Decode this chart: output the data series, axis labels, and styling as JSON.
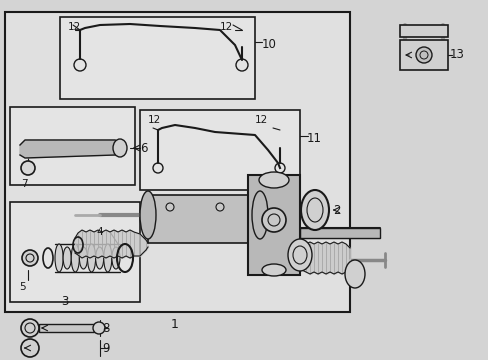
{
  "bg": "#d4d4d4",
  "white": "#ffffff",
  "black": "#1a1a1a",
  "gray_fill": "#e8e8e8",
  "gray_part": "#c8c8c8",
  "fig_w": 4.89,
  "fig_h": 3.6,
  "dpi": 100
}
